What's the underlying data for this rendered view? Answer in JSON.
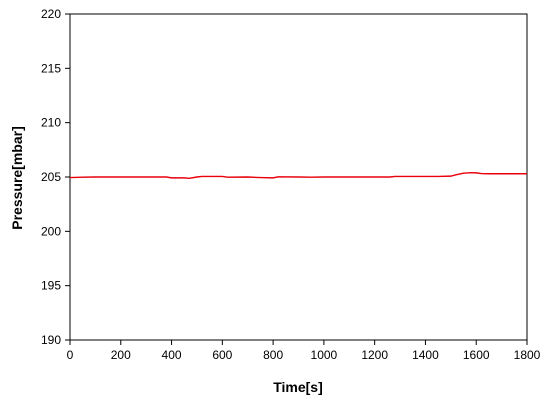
{
  "chart_data": {
    "type": "line",
    "title": "",
    "xlabel": "Time[s]",
    "ylabel": "Pressure[mbar]",
    "xlim": [
      0,
      1800
    ],
    "ylim": [
      190,
      220
    ],
    "xticks": [
      0,
      200,
      400,
      600,
      800,
      1000,
      1200,
      1400,
      1600,
      1800
    ],
    "yticks": [
      190,
      195,
      200,
      205,
      210,
      215,
      220
    ],
    "grid": false,
    "series": [
      {
        "name": "",
        "color": "#e8000b",
        "x": [
          0,
          50,
          100,
          200,
          300,
          380,
          400,
          450,
          470,
          500,
          520,
          600,
          620,
          700,
          750,
          800,
          820,
          900,
          950,
          1000,
          1100,
          1200,
          1260,
          1280,
          1350,
          1400,
          1450,
          1500,
          1520,
          1550,
          1580,
          1600,
          1620,
          1650,
          1700,
          1750,
          1800
        ],
        "y": [
          204.95,
          204.98,
          205.0,
          205.0,
          205.0,
          205.0,
          204.92,
          204.92,
          204.88,
          205.0,
          205.05,
          205.05,
          204.98,
          205.0,
          204.95,
          204.92,
          205.02,
          205.0,
          204.98,
          205.0,
          205.0,
          205.0,
          205.0,
          205.05,
          205.05,
          205.05,
          205.05,
          205.08,
          205.2,
          205.35,
          205.4,
          205.38,
          205.32,
          205.3,
          205.3,
          205.3,
          205.3
        ]
      }
    ]
  }
}
